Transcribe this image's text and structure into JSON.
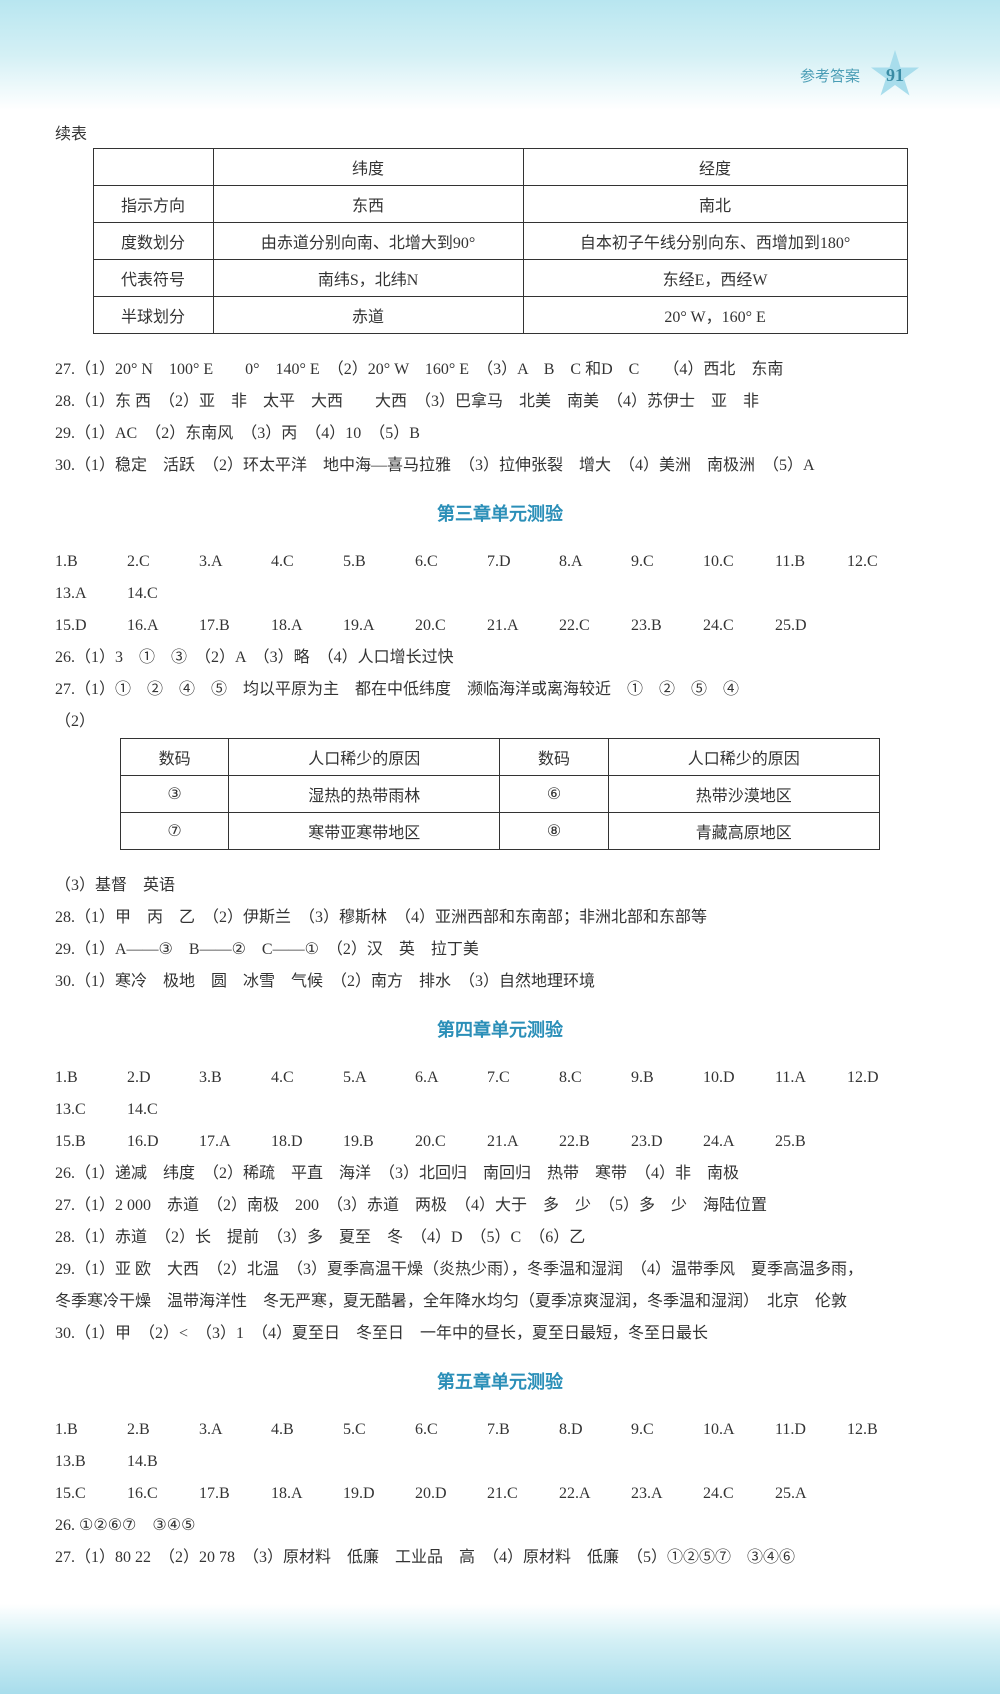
{
  "header": {
    "ref_label": "参考答案",
    "page_number": "91"
  },
  "cont_table_label": "续表",
  "table1": {
    "headers": [
      "",
      "纬度",
      "经度"
    ],
    "rows": [
      [
        "指示方向",
        "东西",
        "南北"
      ],
      [
        "度数划分",
        "由赤道分别向南、北增大到90°",
        "自本初子午线分别向东、西增加到180°"
      ],
      [
        "代表符号",
        "南纬S，北纬N",
        "东经E，西经W"
      ],
      [
        "半球划分",
        "赤道",
        "20° W，160° E"
      ]
    ]
  },
  "block_a": {
    "l1": "27.（1）20° N　100° E　　0°　140° E　（2）20° W　160° E　（3）A　B　C 和D　C　　（4）西北　东南",
    "l2": "28.（1）东 西　（2）亚　非　太平　大西　　大西　（3）巴拿马　北美　南美　（4）苏伊士　亚　非",
    "l3": "29.（1）AC　（2）东南风　（3）丙　（4）10　（5）B",
    "l4": "30.（1）稳定　活跃　（2）环太平洋　地中海—喜马拉雅　（3）拉伸张裂　增大　（4）美洲　南极洲　（5）A"
  },
  "section3_title": "第三章单元测验",
  "section3_choices": [
    "1.B",
    "2.C",
    "3.A",
    "4.C",
    "5.B",
    "6.C",
    "7.D",
    "8.A",
    "9.C",
    "10.C",
    "11.B",
    "12.C",
    "13.A",
    "14.C",
    "15.D",
    "16.A",
    "17.B",
    "18.A",
    "19.A",
    "20.C",
    "21.A",
    "22.C",
    "23.B",
    "24.C",
    "25.D"
  ],
  "block_b": {
    "l1": "26.（1）3　①　③　（2）A　（3）略　（4）人口增长过快",
    "l2": "27.（1）①　②　④　⑤　均以平原为主　都在中低纬度　濒临海洋或离海较近　①　②　⑤　④",
    "l3": "（2）"
  },
  "table2": {
    "headers": [
      "数码",
      "人口稀少的原因",
      "数码",
      "人口稀少的原因"
    ],
    "rows": [
      [
        "③",
        "湿热的热带雨林",
        "⑥",
        "热带沙漠地区"
      ],
      [
        "⑦",
        "寒带亚寒带地区",
        "⑧",
        "青藏高原地区"
      ]
    ]
  },
  "block_c": {
    "l1": "（3）基督　英语",
    "l2": "28.（1）甲　丙　乙　（2）伊斯兰　（3）穆斯林　（4）亚洲西部和东南部；非洲北部和东部等",
    "l3": "29.（1）A——③　B——②　C——①　（2）汉　英　拉丁美",
    "l4": "30.（1）寒冷　极地　圆　冰雪　气候　（2）南方　排水　（3）自然地理环境"
  },
  "section4_title": "第四章单元测验",
  "section4_choices": [
    "1.B",
    "2.D",
    "3.B",
    "4.C",
    "5.A",
    "6.A",
    "7.C",
    "8.C",
    "9.B",
    "10.D",
    "11.A",
    "12.D",
    "13.C",
    "14.C",
    "15.B",
    "16.D",
    "17.A",
    "18.D",
    "19.B",
    "20.C",
    "21.A",
    "22.B",
    "23.D",
    "24.A",
    "25.B"
  ],
  "block_d": {
    "l1": "26.（1）递减　纬度　（2）稀疏　平直　海洋　（3）北回归　南回归　热带　寒带　（4）非　南极",
    "l2": "27.（1）2 000　赤道　（2）南极　200　（3）赤道　两极　（4）大于　多　少　（5）多　少　海陆位置",
    "l3": "28.（1）赤道　（2）长　提前　（3）多　夏至　冬　（4）D　（5）C　（6）乙",
    "l4": "29.（1）亚 欧　大西　（2）北温　（3）夏季高温干燥（炎热少雨），冬季温和湿润　（4）温带季风　夏季高温多雨，",
    "l5": "冬季寒冷干燥　温带海洋性　冬无严寒，夏无酷暑，全年降水均匀（夏季凉爽湿润，冬季温和湿润）　北京　伦敦",
    "l6": "30.（1）甲　（2）<　（3）1　（4）夏至日　冬至日　一年中的昼长，夏至日最短，冬至日最长"
  },
  "section5_title": "第五章单元测验",
  "section5_choices": [
    "1.B",
    "2.B",
    "3.A",
    "4.B",
    "5.C",
    "6.C",
    "7.B",
    "8.D",
    "9.C",
    "10.A",
    "11.D",
    "12.B",
    "13.B",
    "14.B",
    "15.C",
    "16.C",
    "17.B",
    "18.A",
    "19.D",
    "20.D",
    "21.C",
    "22.A",
    "23.A",
    "24.C",
    "25.A"
  ],
  "block_e": {
    "l1": "26. ①②⑥⑦　③④⑤",
    "l2": "27.（1）80 22　（2）20 78　（3）原材料　低廉　工业品　高　（4）原材料　低廉　（5）①②⑤⑦　③④⑥"
  }
}
